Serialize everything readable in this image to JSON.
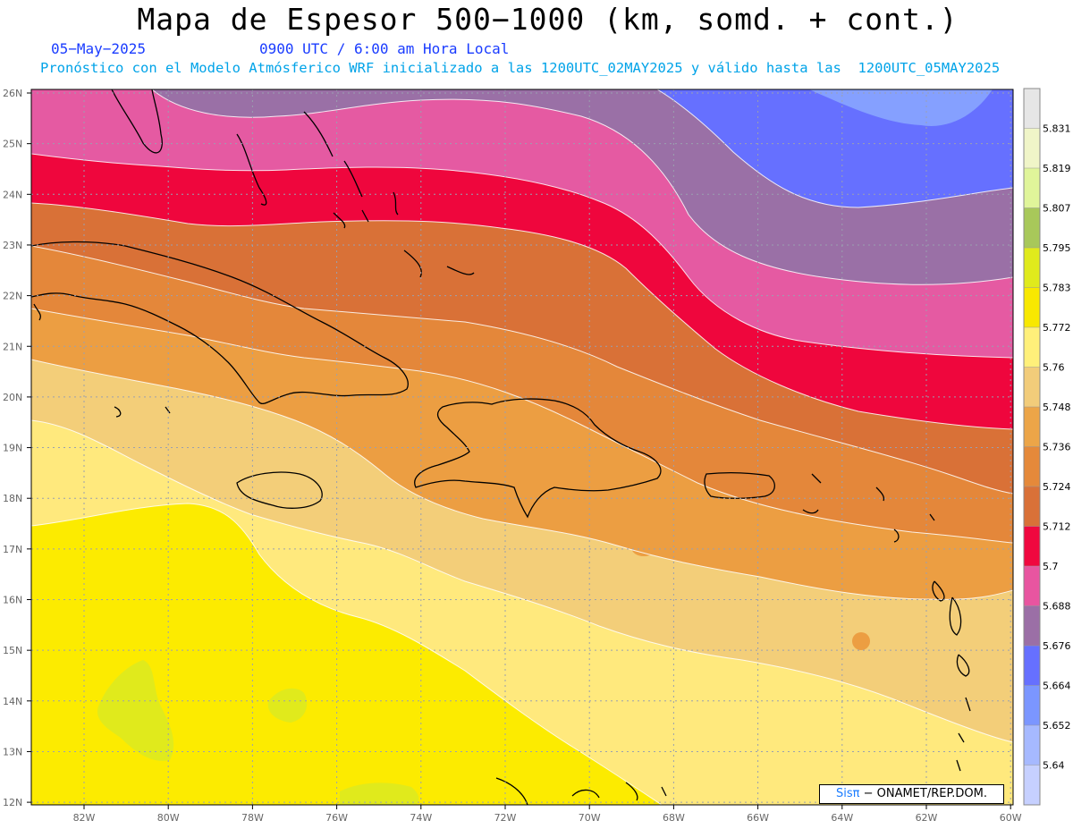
{
  "title": "Mapa de Espesor 500−1000 (km, somd. + cont.)",
  "date": "05−May−2025",
  "time": "0900 UTC / 6:00 am Hora Local",
  "subtitle": "Pronóstico con el Modelo Atmósferico WRF inicializado a las 1200UTC_02MAY2025 y válido hasta las  1200UTC_05MAY2025",
  "lat_labels": [
    "26N",
    "25N",
    "24N",
    "23N",
    "22N",
    "21N",
    "20N",
    "19N",
    "18N",
    "17N",
    "16N",
    "15N",
    "14N",
    "13N",
    "12N"
  ],
  "lon_labels": [
    "82W",
    "80W",
    "78W",
    "76W",
    "74W",
    "72W",
    "70W",
    "68W",
    "66W",
    "64W",
    "62W",
    "60W"
  ],
  "colorbar": {
    "labels": [
      "5.831",
      "5.819",
      "5.807",
      "5.795",
      "5.783",
      "5.772",
      "5.76",
      "5.748",
      "5.736",
      "5.724",
      "5.712",
      "5.7",
      "5.688",
      "5.676",
      "5.664",
      "5.652",
      "5.64"
    ],
    "colors": [
      "#e6e6e6",
      "#f0f5c8",
      "#e0f59a",
      "#a8c85a",
      "#e0ea1c",
      "#f8e800",
      "#fff07a",
      "#f2cc7a",
      "#eca548",
      "#e5893a",
      "#d97138",
      "#f0083f",
      "#e855a0",
      "#9b6fa6",
      "#6670ff",
      "#7b96ff",
      "#a6b9ff",
      "#c6d0ff"
    ]
  },
  "credit": {
    "sis": "Sisπ",
    "rest": " − ONAMET/REP.DOM."
  },
  "colors": {
    "fill_low": "#fceb00",
    "fill_mid": "#ffe97d",
    "fill_mid2": "#f3ce79",
    "orange1": "#ec9e42",
    "orange2": "#e4873a",
    "orange3": "#d97137",
    "red": "#ef063d",
    "pink": "#e55aa2",
    "purple": "#9a70a6",
    "blue": "#6670ff",
    "lightblue": "#85a0ff"
  }
}
